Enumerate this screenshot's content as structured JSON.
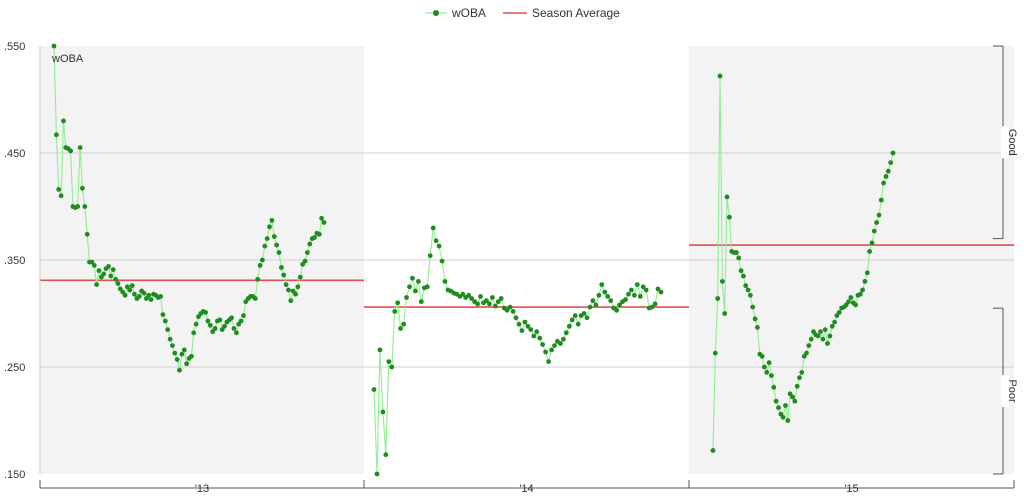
{
  "chart_data": {
    "type": "line",
    "legend": {
      "position": "top-center",
      "entries": [
        {
          "label": "wOBA",
          "color": "#2a8a2a",
          "marker": "dot"
        },
        {
          "label": "Season Average",
          "color": "#e05050",
          "marker": "line"
        }
      ]
    },
    "ylabel_inside": "wOBA",
    "ylim": [
      0.15,
      0.55
    ],
    "yticks": [
      {
        "value": 0.15,
        "label": ".150"
      },
      {
        "value": 0.25,
        "label": ".250"
      },
      {
        "value": 0.35,
        "label": ".350"
      },
      {
        "value": 0.45,
        "label": ".450"
      },
      {
        "value": 0.55,
        "label": ".550"
      }
    ],
    "grid": true,
    "right_annotations": [
      {
        "label": "Good",
        "from": 0.37,
        "to": 0.55
      },
      {
        "label": "Poor",
        "from": 0.15,
        "to": 0.305
      }
    ],
    "seasons": [
      {
        "label": "'13",
        "shaded": true,
        "season_average": 0.331,
        "values": [
          0.55,
          0.467,
          0.416,
          0.41,
          0.48,
          0.455,
          0.454,
          0.452,
          0.4,
          0.399,
          0.4,
          0.455,
          0.417,
          0.4,
          0.374,
          0.348,
          0.348,
          0.345,
          0.327,
          0.34,
          0.334,
          0.337,
          0.342,
          0.344,
          0.335,
          0.341,
          0.332,
          0.328,
          0.323,
          0.32,
          0.317,
          0.325,
          0.322,
          0.326,
          0.318,
          0.314,
          0.316,
          0.321,
          0.319,
          0.314,
          0.317,
          0.313,
          0.318,
          0.317,
          0.315,
          0.316,
          0.299,
          0.293,
          0.285,
          0.276,
          0.27,
          0.263,
          0.257,
          0.247,
          0.262,
          0.266,
          0.253,
          0.258,
          0.26,
          0.282,
          0.29,
          0.297,
          0.3,
          0.302,
          0.301,
          0.293,
          0.289,
          0.283,
          0.286,
          0.293,
          0.294,
          0.285,
          0.288,
          0.292,
          0.294,
          0.296,
          0.286,
          0.282,
          0.29,
          0.293,
          0.298,
          0.311,
          0.314,
          0.316,
          0.316,
          0.314,
          0.332,
          0.345,
          0.35,
          0.363,
          0.37,
          0.381,
          0.387,
          0.372,
          0.364,
          0.357,
          0.343,
          0.336,
          0.327,
          0.322,
          0.312,
          0.321,
          0.318,
          0.325,
          0.334,
          0.346,
          0.349,
          0.357,
          0.365,
          0.37,
          0.371,
          0.375,
          0.374,
          0.389,
          0.385
        ]
      },
      {
        "label": "'14",
        "shaded": false,
        "season_average": 0.306,
        "values": [
          0.229,
          0.15,
          0.266,
          0.208,
          0.168,
          0.255,
          0.25,
          0.302,
          0.31,
          0.286,
          0.29,
          0.315,
          0.325,
          0.333,
          0.321,
          0.33,
          0.311,
          0.324,
          0.325,
          0.354,
          0.38,
          0.368,
          0.363,
          0.349,
          0.33,
          0.322,
          0.321,
          0.319,
          0.318,
          0.316,
          0.318,
          0.315,
          0.317,
          0.314,
          0.311,
          0.309,
          0.316,
          0.31,
          0.312,
          0.309,
          0.315,
          0.307,
          0.311,
          0.314,
          0.305,
          0.303,
          0.306,
          0.302,
          0.296,
          0.29,
          0.284,
          0.292,
          0.288,
          0.285,
          0.279,
          0.283,
          0.277,
          0.271,
          0.264,
          0.255,
          0.266,
          0.27,
          0.274,
          0.272,
          0.276,
          0.282,
          0.288,
          0.294,
          0.298,
          0.29,
          0.298,
          0.3,
          0.296,
          0.306,
          0.312,
          0.308,
          0.317,
          0.327,
          0.32,
          0.316,
          0.312,
          0.305,
          0.303,
          0.308,
          0.311,
          0.313,
          0.318,
          0.322,
          0.317,
          0.327,
          0.316,
          0.325,
          0.322,
          0.305,
          0.306,
          0.309,
          0.323,
          0.32
        ]
      },
      {
        "label": "'15",
        "shaded": true,
        "season_average": 0.364,
        "values": [
          0.172,
          0.263,
          0.314,
          0.522,
          0.33,
          0.3,
          0.409,
          0.39,
          0.358,
          0.357,
          0.357,
          0.352,
          0.34,
          0.335,
          0.326,
          0.322,
          0.317,
          0.306,
          0.295,
          0.287,
          0.262,
          0.26,
          0.25,
          0.245,
          0.254,
          0.242,
          0.231,
          0.218,
          0.212,
          0.206,
          0.203,
          0.214,
          0.2,
          0.225,
          0.222,
          0.218,
          0.232,
          0.24,
          0.245,
          0.26,
          0.263,
          0.27,
          0.276,
          0.283,
          0.28,
          0.279,
          0.283,
          0.276,
          0.285,
          0.272,
          0.279,
          0.288,
          0.292,
          0.298,
          0.301,
          0.305,
          0.306,
          0.308,
          0.311,
          0.315,
          0.31,
          0.308,
          0.317,
          0.318,
          0.322,
          0.33,
          0.338,
          0.358,
          0.366,
          0.377,
          0.385,
          0.392,
          0.406,
          0.422,
          0.428,
          0.433,
          0.441,
          0.45
        ]
      }
    ]
  }
}
